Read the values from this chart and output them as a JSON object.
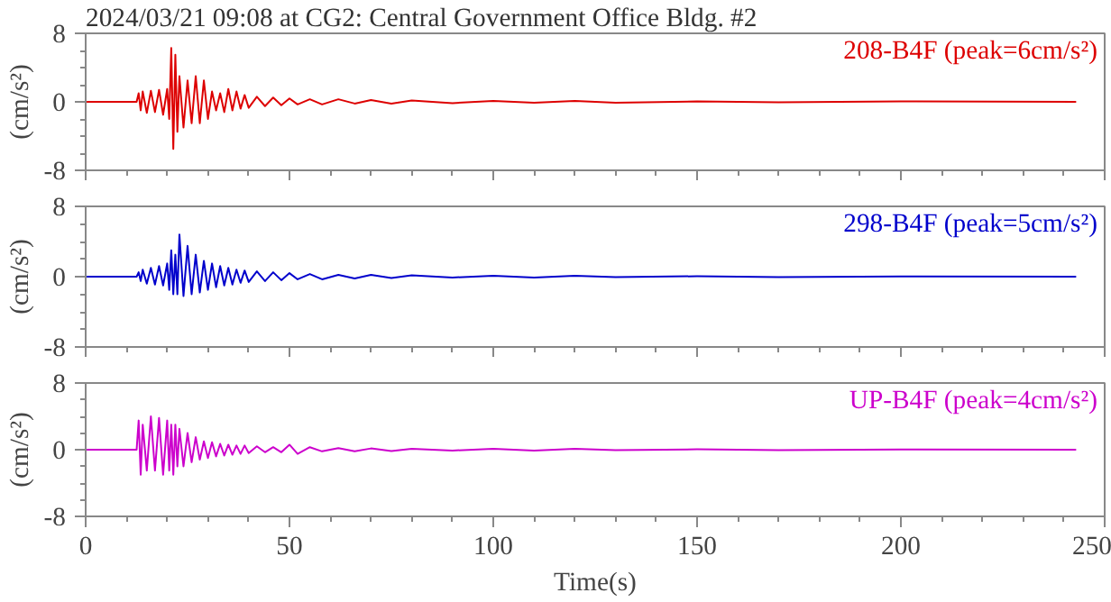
{
  "chart_data": [
    {
      "type": "line",
      "title": "2024/03/21 09:08 at CG2: Central Government Office Bldg. #2",
      "ylabel": "(cm/s²)",
      "tick_labels": "y",
      "legend": false,
      "grid": false,
      "x": [
        0,
        12.5,
        13,
        13.5,
        14,
        15,
        16,
        17,
        18,
        19,
        20,
        20.5,
        21,
        21.5,
        22,
        22.5,
        23,
        24,
        25,
        26,
        27,
        28,
        29,
        30,
        31,
        32,
        33,
        34,
        35,
        36,
        37,
        38,
        39,
        40,
        42,
        44,
        46,
        48,
        50,
        52,
        55,
        58,
        62,
        66,
        70,
        75,
        80,
        90,
        100,
        110,
        120,
        130,
        150,
        170,
        200,
        243
      ],
      "series": [
        {
          "name": "208-B4F (peak=6cm/s²)",
          "color": "#dd0000",
          "values": [
            0,
            0,
            1.0,
            -1.0,
            1.2,
            -1.3,
            1.3,
            -1.2,
            1.4,
            -1.5,
            1.5,
            -2,
            6.3,
            -5.5,
            5.5,
            -3.5,
            3,
            -3,
            2.5,
            -2.5,
            3,
            -2.5,
            2.5,
            -2,
            1.2,
            -1,
            1.0,
            -1.2,
            1.5,
            -1.0,
            1.2,
            -0.8,
            0.8,
            -0.7,
            0.6,
            -0.5,
            0.5,
            -0.4,
            0.4,
            -0.3,
            0.3,
            -0.3,
            0.3,
            -0.2,
            0.2,
            -0.2,
            0.15,
            -0.15,
            0.1,
            -0.1,
            0.1,
            -0.1,
            0.05,
            -0.05,
            0.05,
            0
          ]
        }
      ],
      "xlim": [
        0,
        250
      ],
      "ylim": [
        -8,
        8
      ],
      "xticks": [
        0,
        {
          "value": 10,
          "label": null
        },
        {
          "value": 20,
          "label": null
        },
        {
          "value": 30,
          "label": null
        },
        {
          "value": 40,
          "label": null
        },
        50,
        {
          "value": 60,
          "label": null
        },
        {
          "value": 70,
          "label": null
        },
        {
          "value": 80,
          "label": null
        },
        {
          "value": 90,
          "label": null
        },
        100,
        {
          "value": 110,
          "label": null
        },
        {
          "value": 120,
          "label": null
        },
        {
          "value": 130,
          "label": null
        },
        {
          "value": 140,
          "label": null
        },
        150,
        {
          "value": 160,
          "label": null
        },
        {
          "value": 170,
          "label": null
        },
        {
          "value": 180,
          "label": null
        },
        {
          "value": 190,
          "label": null
        },
        200,
        {
          "value": 210,
          "label": null
        },
        {
          "value": 220,
          "label": null
        },
        {
          "value": 230,
          "label": null
        },
        {
          "value": 240,
          "label": null
        },
        250
      ],
      "yticks": [
        -8,
        {
          "value": -6,
          "label": null
        },
        {
          "value": -4,
          "label": null
        },
        {
          "value": -2,
          "label": null
        },
        0,
        {
          "value": 2,
          "label": null
        },
        {
          "value": 4,
          "label": null
        },
        {
          "value": 6,
          "label": null
        },
        8
      ]
    },
    {
      "type": "line",
      "ylabel": "(cm/s²)",
      "tick_labels": "y",
      "legend": false,
      "grid": false,
      "x": [
        0,
        12.5,
        13,
        13.5,
        14,
        15,
        16,
        17,
        18,
        19,
        20,
        20.5,
        21,
        21.5,
        22,
        22.5,
        23,
        24,
        25,
        26,
        27,
        28,
        29,
        30,
        31,
        32,
        33,
        34,
        35,
        36,
        37,
        38,
        39,
        40,
        42,
        44,
        46,
        48,
        50,
        52,
        55,
        58,
        62,
        66,
        70,
        75,
        80,
        90,
        100,
        110,
        120,
        130,
        150,
        170,
        200,
        243
      ],
      "series": [
        {
          "name": "298-B4F (peak=5cm/s²)",
          "color": "#0000cc",
          "values": [
            0,
            0,
            0.5,
            -0.5,
            0.8,
            -0.8,
            1,
            -0.9,
            1.2,
            -1,
            1.5,
            -1.5,
            3,
            -2,
            2.5,
            -2,
            4.8,
            -2.2,
            3.5,
            -2,
            2.5,
            -1.8,
            1.8,
            -1.5,
            1.5,
            -1.2,
            1.2,
            -1,
            1.0,
            -0.9,
            0.8,
            -0.7,
            0.7,
            -0.6,
            0.6,
            -0.5,
            0.5,
            -0.4,
            0.4,
            -0.3,
            0.3,
            -0.3,
            0.2,
            -0.2,
            0.2,
            -0.15,
            0.15,
            -0.1,
            0.1,
            -0.1,
            0.1,
            -0.05,
            0.05,
            -0.05,
            0.03,
            0
          ]
        }
      ],
      "xlim": [
        0,
        250
      ],
      "ylim": [
        -8,
        8
      ],
      "xticks": [
        0,
        {
          "value": 10,
          "label": null
        },
        {
          "value": 20,
          "label": null
        },
        {
          "value": 30,
          "label": null
        },
        {
          "value": 40,
          "label": null
        },
        50,
        {
          "value": 60,
          "label": null
        },
        {
          "value": 70,
          "label": null
        },
        {
          "value": 80,
          "label": null
        },
        {
          "value": 90,
          "label": null
        },
        100,
        {
          "value": 110,
          "label": null
        },
        {
          "value": 120,
          "label": null
        },
        {
          "value": 130,
          "label": null
        },
        {
          "value": 140,
          "label": null
        },
        150,
        {
          "value": 160,
          "label": null
        },
        {
          "value": 170,
          "label": null
        },
        {
          "value": 180,
          "label": null
        },
        {
          "value": 190,
          "label": null
        },
        200,
        {
          "value": 210,
          "label": null
        },
        {
          "value": 220,
          "label": null
        },
        {
          "value": 230,
          "label": null
        },
        {
          "value": 240,
          "label": null
        },
        250
      ],
      "yticks": [
        -8,
        {
          "value": -6,
          "label": null
        },
        {
          "value": -4,
          "label": null
        },
        {
          "value": -2,
          "label": null
        },
        0,
        {
          "value": 2,
          "label": null
        },
        {
          "value": 4,
          "label": null
        },
        {
          "value": 6,
          "label": null
        },
        8
      ]
    },
    {
      "type": "line",
      "ylabel": "(cm/s²)",
      "xlabel": "Time(s)",
      "legend": false,
      "grid": false,
      "x": [
        0,
        12.5,
        13,
        13.5,
        14,
        15,
        16,
        17,
        18,
        19,
        20,
        20.5,
        21,
        21.5,
        22,
        22.5,
        23,
        24,
        25,
        26,
        27,
        28,
        29,
        30,
        31,
        32,
        33,
        34,
        35,
        36,
        37,
        38,
        39,
        40,
        42,
        44,
        46,
        48,
        50,
        52,
        55,
        58,
        62,
        66,
        70,
        75,
        80,
        90,
        100,
        110,
        120,
        130,
        150,
        170,
        200,
        243
      ],
      "series": [
        {
          "name": "UP-B4F (peak=4cm/s²)",
          "color": "#cc00cc",
          "values": [
            0,
            0,
            3.5,
            -3,
            3,
            -2.5,
            4,
            -2.5,
            3.8,
            -3,
            3.5,
            -2.5,
            3,
            -3,
            3,
            -2,
            2.5,
            -2,
            2,
            -1.5,
            1.5,
            -1.2,
            1.0,
            -1.0,
            0.9,
            -0.8,
            0.7,
            -0.7,
            0.6,
            -0.6,
            0.5,
            -0.5,
            0.5,
            -0.4,
            0.4,
            -0.3,
            0.3,
            -0.3,
            0.6,
            -0.5,
            0.3,
            -0.2,
            0.2,
            -0.2,
            0.15,
            -0.15,
            0.1,
            -0.1,
            0.1,
            -0.1,
            0.1,
            -0.05,
            0.05,
            -0.05,
            0.03,
            0
          ]
        }
      ],
      "xlim": [
        0,
        250
      ],
      "ylim": [
        -8,
        8
      ],
      "xticks": [
        0,
        {
          "value": 10,
          "label": null
        },
        {
          "value": 20,
          "label": null
        },
        {
          "value": 30,
          "label": null
        },
        {
          "value": 40,
          "label": null
        },
        50,
        {
          "value": 60,
          "label": null
        },
        {
          "value": 70,
          "label": null
        },
        {
          "value": 80,
          "label": null
        },
        {
          "value": 90,
          "label": null
        },
        100,
        {
          "value": 110,
          "label": null
        },
        {
          "value": 120,
          "label": null
        },
        {
          "value": 130,
          "label": null
        },
        {
          "value": 140,
          "label": null
        },
        150,
        {
          "value": 160,
          "label": null
        },
        {
          "value": 170,
          "label": null
        },
        {
          "value": 180,
          "label": null
        },
        {
          "value": 190,
          "label": null
        },
        200,
        {
          "value": 210,
          "label": null
        },
        {
          "value": 220,
          "label": null
        },
        {
          "value": 230,
          "label": null
        },
        {
          "value": 240,
          "label": null
        },
        250
      ],
      "yticks": [
        -8,
        {
          "value": -6,
          "label": null
        },
        {
          "value": -4,
          "label": null
        },
        {
          "value": -2,
          "label": null
        },
        0,
        {
          "value": 2,
          "label": null
        },
        {
          "value": 4,
          "label": null
        },
        {
          "value": 6,
          "label": null
        },
        8
      ]
    }
  ]
}
